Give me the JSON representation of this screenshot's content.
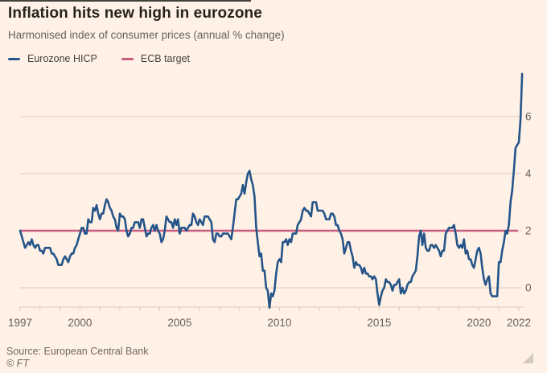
{
  "header": {
    "title": "Inflation hits new high in eurozone",
    "subtitle": "Harmonised index of consumer prices (annual % change)"
  },
  "legend": [
    {
      "label": "Eurozone HICP",
      "color": "#255489",
      "swatch": "line"
    },
    {
      "label": "ECB target",
      "color": "#C85B80",
      "swatch": "line"
    }
  ],
  "footer": {
    "source": "Source: European Central Bank",
    "credit": "© FT"
  },
  "colors": {
    "background": "#FFF1E5",
    "title_text": "#26231D",
    "subtitle_text": "#66605C",
    "axis_text": "#66605C",
    "gridline": "#DACDBE",
    "axis_line": "#D8CCBD",
    "hicp_line": "#255489",
    "target_line": "#C85B80"
  },
  "chart_data": {
    "type": "line",
    "title": "Inflation hits new high in eurozone",
    "subtitle": "Harmonised index of consumer prices (annual % change)",
    "xlabel": "",
    "ylabel": "annual % change",
    "x_start": "1997-01",
    "x_end": "2022-03",
    "x_frequency": "monthly",
    "xlim": [
      1997,
      2022.25
    ],
    "ylim": [
      -1,
      7.8
    ],
    "grid": "horizontal",
    "legend_position": "top-left",
    "xticks": [
      {
        "year": 1997,
        "label": "1997"
      },
      {
        "year": 2000,
        "label": "2000"
      },
      {
        "year": 2005,
        "label": "2005"
      },
      {
        "year": 2010,
        "label": "2010"
      },
      {
        "year": 2015,
        "label": "2015"
      },
      {
        "year": 2020,
        "label": "2020"
      },
      {
        "year": 2022,
        "label": "2022"
      }
    ],
    "minor_xtick_years": {
      "from": 1997,
      "to": 2022,
      "step": 1
    },
    "yticks": [
      0,
      2,
      4,
      6
    ],
    "series": [
      {
        "name": "Eurozone HICP",
        "color": "#255489",
        "monthly_values": [
          2.0,
          1.8,
          1.6,
          1.4,
          1.5,
          1.6,
          1.5,
          1.7,
          1.5,
          1.4,
          1.5,
          1.5,
          1.3,
          1.3,
          1.2,
          1.4,
          1.4,
          1.4,
          1.4,
          1.2,
          1.2,
          1.1,
          1.0,
          0.8,
          0.8,
          0.8,
          1.0,
          1.1,
          1.0,
          0.9,
          1.1,
          1.2,
          1.2,
          1.4,
          1.5,
          1.7,
          1.9,
          2.1,
          2.1,
          1.9,
          1.9,
          2.4,
          2.3,
          2.3,
          2.8,
          2.7,
          2.9,
          2.6,
          2.4,
          2.6,
          2.6,
          2.9,
          3.1,
          3.0,
          2.8,
          2.7,
          2.5,
          2.4,
          2.1,
          2.0,
          2.6,
          2.5,
          2.5,
          2.4,
          2.0,
          1.8,
          1.9,
          2.1,
          2.1,
          2.3,
          2.3,
          2.3,
          2.1,
          2.4,
          2.4,
          2.1,
          1.8,
          1.9,
          1.9,
          2.1,
          2.2,
          2.0,
          2.2,
          2.0,
          1.9,
          1.6,
          1.7,
          2.0,
          2.5,
          2.4,
          2.3,
          2.3,
          2.1,
          2.4,
          2.2,
          2.4,
          1.9,
          2.1,
          2.1,
          2.1,
          2.0,
          2.1,
          2.2,
          2.2,
          2.6,
          2.5,
          2.3,
          2.2,
          2.4,
          2.3,
          2.2,
          2.5,
          2.5,
          2.5,
          2.4,
          2.3,
          1.7,
          1.6,
          1.9,
          1.9,
          1.8,
          1.8,
          1.9,
          1.9,
          1.9,
          1.9,
          1.8,
          1.7,
          2.1,
          2.6,
          3.1,
          3.1,
          3.2,
          3.3,
          3.6,
          3.3,
          3.7,
          4.0,
          4.1,
          3.8,
          3.6,
          3.2,
          2.1,
          1.6,
          1.1,
          1.2,
          0.6,
          0.6,
          0.0,
          -0.1,
          -0.7,
          -0.2,
          -0.3,
          -0.1,
          0.5,
          0.9,
          1.0,
          0.9,
          1.6,
          1.6,
          1.7,
          1.5,
          1.7,
          1.6,
          1.9,
          1.9,
          1.9,
          2.2,
          2.3,
          2.4,
          2.7,
          2.8,
          2.7,
          2.7,
          2.6,
          2.5,
          3.0,
          3.0,
          3.0,
          2.7,
          2.7,
          2.7,
          2.7,
          2.6,
          2.4,
          2.4,
          2.4,
          2.6,
          2.6,
          2.5,
          2.2,
          2.2,
          2.0,
          1.9,
          1.7,
          1.2,
          1.4,
          1.6,
          1.6,
          1.3,
          1.1,
          0.7,
          0.9,
          0.8,
          0.8,
          0.7,
          0.5,
          0.7,
          0.5,
          0.5,
          0.4,
          0.4,
          0.3,
          0.4,
          0.3,
          -0.2,
          -0.6,
          -0.3,
          -0.1,
          0.0,
          0.3,
          0.2,
          0.2,
          0.1,
          -0.1,
          0.1,
          0.1,
          0.2,
          0.3,
          -0.2,
          0.0,
          -0.2,
          -0.1,
          0.1,
          0.2,
          0.2,
          0.4,
          0.5,
          0.6,
          1.1,
          1.8,
          2.0,
          1.5,
          1.9,
          1.4,
          1.3,
          1.3,
          1.5,
          1.5,
          1.4,
          1.5,
          1.4,
          1.3,
          1.1,
          1.3,
          1.3,
          1.9,
          2.0,
          2.1,
          2.1,
          2.1,
          2.2,
          1.9,
          1.5,
          1.4,
          1.5,
          1.4,
          1.7,
          1.2,
          1.3,
          1.0,
          1.0,
          0.8,
          0.7,
          1.0,
          1.3,
          1.4,
          1.2,
          0.7,
          0.3,
          0.1,
          0.3,
          0.4,
          -0.2,
          -0.3,
          -0.3,
          -0.3,
          -0.3,
          0.9,
          0.9,
          1.3,
          1.6,
          2.0,
          1.9,
          2.2,
          3.0,
          3.4,
          4.1,
          4.9,
          5.0,
          5.1,
          5.9,
          7.5
        ]
      },
      {
        "name": "ECB target",
        "color": "#C85B80",
        "constant_value": 2.0
      }
    ]
  }
}
